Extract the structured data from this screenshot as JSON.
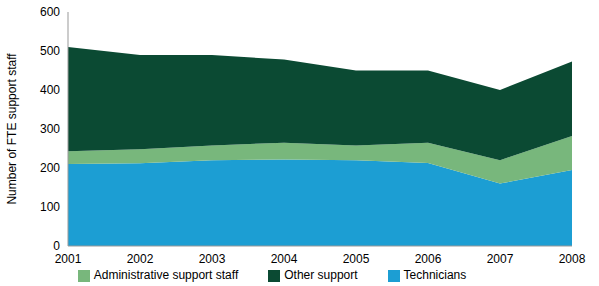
{
  "chart_data": {
    "type": "area",
    "stacked": true,
    "grid": false,
    "legend": "bottom",
    "y_label": "Number of FTE support staff",
    "categories": [
      "2001",
      "2002",
      "2003",
      "2004",
      "2005",
      "2006",
      "2007",
      "2008"
    ],
    "series": [
      {
        "name": "Technicians",
        "color": "#1c9ed3",
        "values": [
          210,
          212,
          220,
          222,
          220,
          213,
          160,
          195
        ]
      },
      {
        "name": "Administrative support staff",
        "color": "#78b77c",
        "values": [
          33,
          36,
          38,
          43,
          38,
          52,
          60,
          87
        ]
      },
      {
        "name": "Other support",
        "color": "#0b4a33",
        "values": [
          267,
          242,
          232,
          213,
          192,
          185,
          180,
          191
        ]
      }
    ],
    "ylim": [
      0,
      600
    ],
    "yticks": [
      0,
      100,
      200,
      300,
      400,
      500,
      600
    ]
  }
}
